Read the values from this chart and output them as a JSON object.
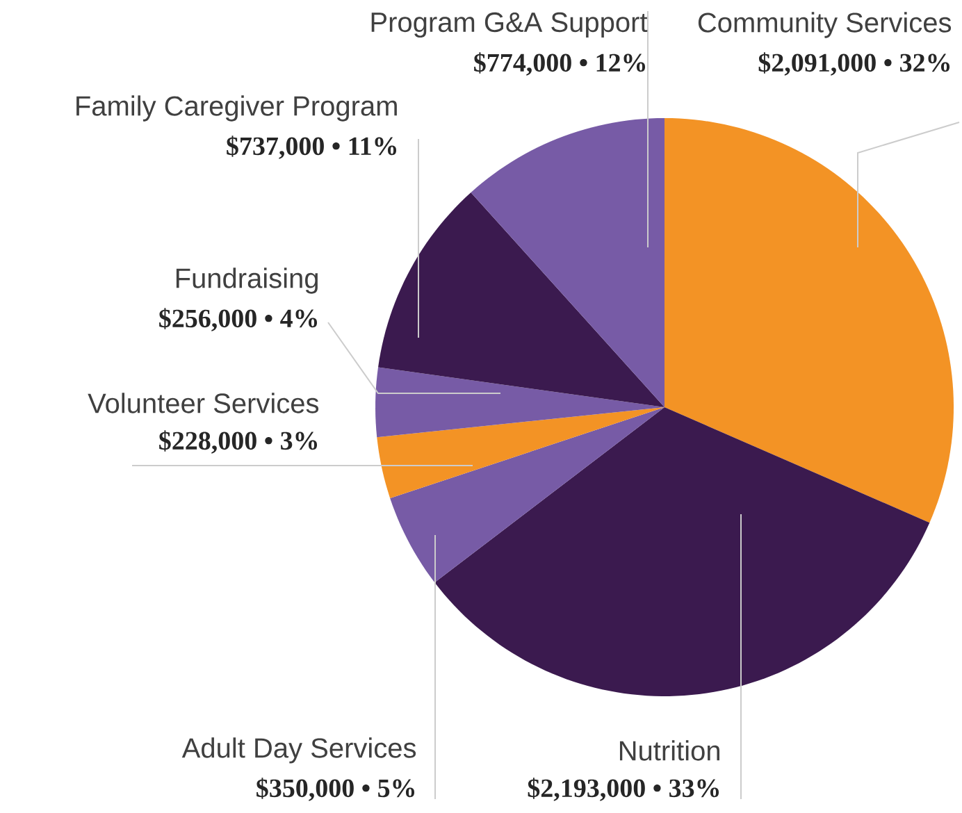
{
  "chart_data": {
    "type": "pie",
    "categories": [
      "Community Services",
      "Nutrition",
      "Adult Day Services",
      "Volunteer Services",
      "Fundraising",
      "Family Caregiver Program",
      "Program G&A Support"
    ],
    "values": [
      2091000,
      2193000,
      350000,
      228000,
      256000,
      737000,
      774000
    ],
    "colors": [
      "#f39325",
      "#3b1a4f",
      "#775ba6",
      "#f39325",
      "#775ba6",
      "#3b1a4f",
      "#775ba6"
    ],
    "value_labels": [
      "$2,091,000 • 32%",
      "$2,193,000 • 33%",
      "$350,000 • 5%",
      "$228,000 • 3%",
      "$256,000 • 4%",
      "$737,000 • 11%",
      "$774,000 • 12%"
    ]
  }
}
